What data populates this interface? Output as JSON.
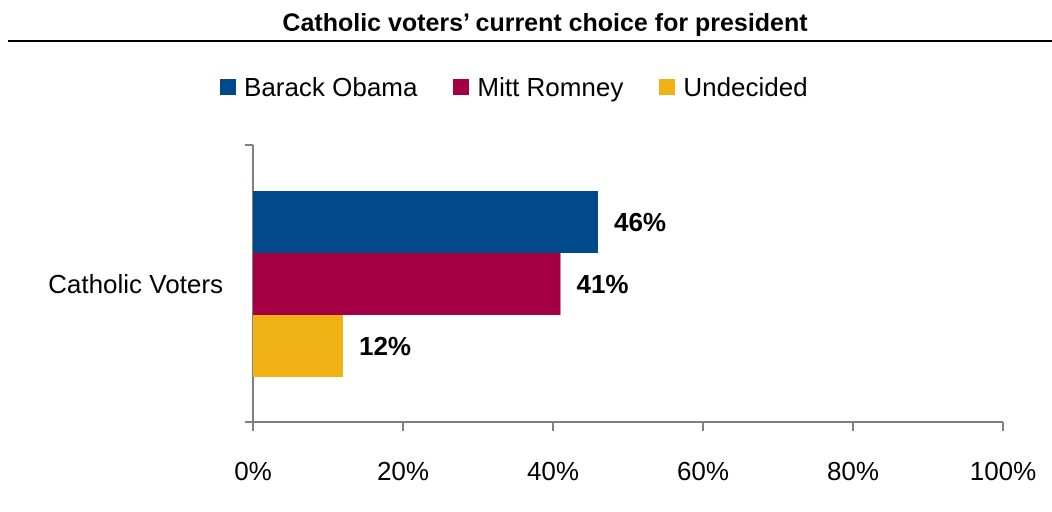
{
  "colors": {
    "obama": "#004a8c",
    "romney": "#a50044",
    "undecided": "#f0b114",
    "axis": "#808080"
  },
  "chart_data": {
    "type": "bar",
    "orientation": "horizontal",
    "title": "Catholic voters’ current choice for president",
    "categories": [
      "Catholic Voters"
    ],
    "series": [
      {
        "name": "Barack Obama",
        "values": [
          46
        ],
        "label": "46%",
        "color": "#004a8c"
      },
      {
        "name": "Mitt Romney",
        "values": [
          41
        ],
        "label": "41%",
        "color": "#a50044"
      },
      {
        "name": "Undecided",
        "values": [
          12
        ],
        "label": "12%",
        "color": "#f0b114"
      }
    ],
    "xlim": [
      0,
      100
    ],
    "xticks": [
      0,
      20,
      40,
      60,
      80,
      100
    ],
    "xtick_labels": [
      "0%",
      "20%",
      "40%",
      "60%",
      "80%",
      "100%"
    ],
    "xlabel": "",
    "ylabel": "",
    "grid": false,
    "legend_position": "top"
  }
}
